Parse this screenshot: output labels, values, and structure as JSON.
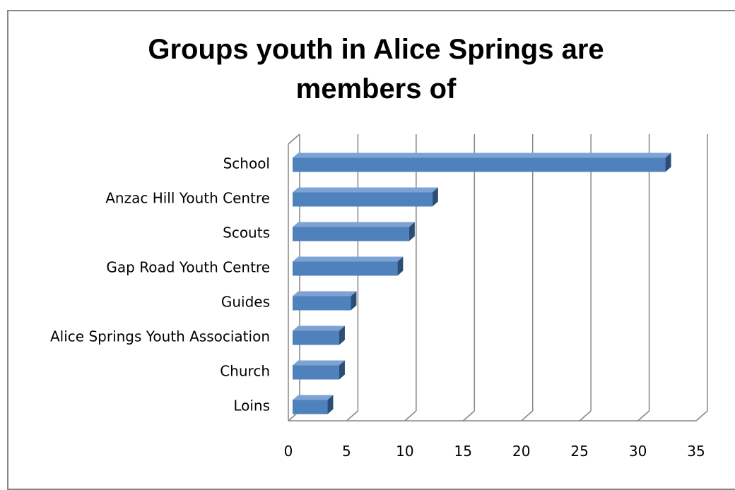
{
  "chart_data": {
    "type": "bar",
    "orientation": "horizontal",
    "style": "3d",
    "title": "Groups youth in Alice Springs are members of",
    "title_lines": [
      "Groups youth in Alice Springs are",
      "members of"
    ],
    "categories": [
      "School",
      "Anzac Hill Youth Centre",
      "Scouts",
      "Gap Road Youth Centre",
      "Guides",
      "Alice Springs Youth Association",
      "Church",
      "Loins"
    ],
    "values": [
      32,
      12,
      10,
      9,
      5,
      4,
      4,
      3
    ],
    "xlabel": "",
    "ylabel": "",
    "xlim": [
      0,
      35
    ],
    "xticks": [
      0,
      5,
      10,
      15,
      20,
      25,
      30,
      35
    ],
    "grid": "vertical",
    "legend": "none",
    "colors": {
      "bar_front": "#4F81BD",
      "bar_top": "#7DA2D4",
      "bar_side": "#2C4D75",
      "gridline": "#868686",
      "border": "#868686"
    }
  }
}
